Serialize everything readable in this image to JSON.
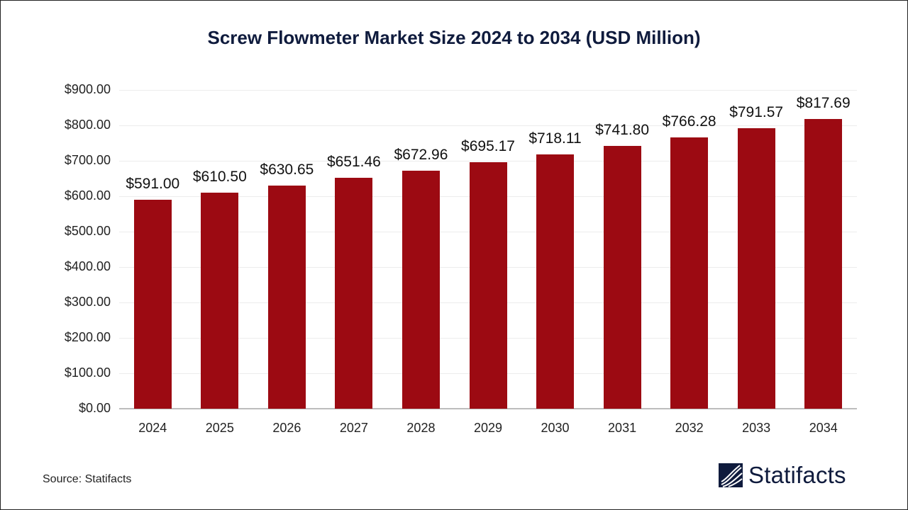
{
  "title": "Screw Flowmeter Market Size 2024 to 2034 (USD Million)",
  "source": "Source: Statifacts",
  "logo": {
    "name": "Statifacts",
    "icon": "statifacts-logo-icon"
  },
  "colors": {
    "bar": "#9c0a12",
    "title": "#0f1b3d"
  },
  "y_ticks": [
    "$900.00",
    "$800.00",
    "$700.00",
    "$600.00",
    "$500.00",
    "$400.00",
    "$300.00",
    "$200.00",
    "$100.00",
    "$0.00"
  ],
  "chart_data": {
    "type": "bar",
    "title": "Screw Flowmeter Market Size 2024 to 2034 (USD Million)",
    "xlabel": "",
    "ylabel": "",
    "categories": [
      "2024",
      "2025",
      "2026",
      "2027",
      "2028",
      "2029",
      "2030",
      "2031",
      "2032",
      "2033",
      "2034"
    ],
    "values": [
      591.0,
      610.5,
      630.65,
      651.46,
      672.96,
      695.17,
      718.11,
      741.8,
      766.28,
      791.57,
      817.69
    ],
    "labels": [
      "$591.00",
      "$610.50",
      "$630.65",
      "$651.46",
      "$672.96",
      "$695.17",
      "$718.11",
      "$741.80",
      "$766.28",
      "$791.57",
      "$817.69"
    ],
    "ylim": [
      0,
      900
    ],
    "ytick_step": 100,
    "grid": true,
    "legend": "none"
  }
}
